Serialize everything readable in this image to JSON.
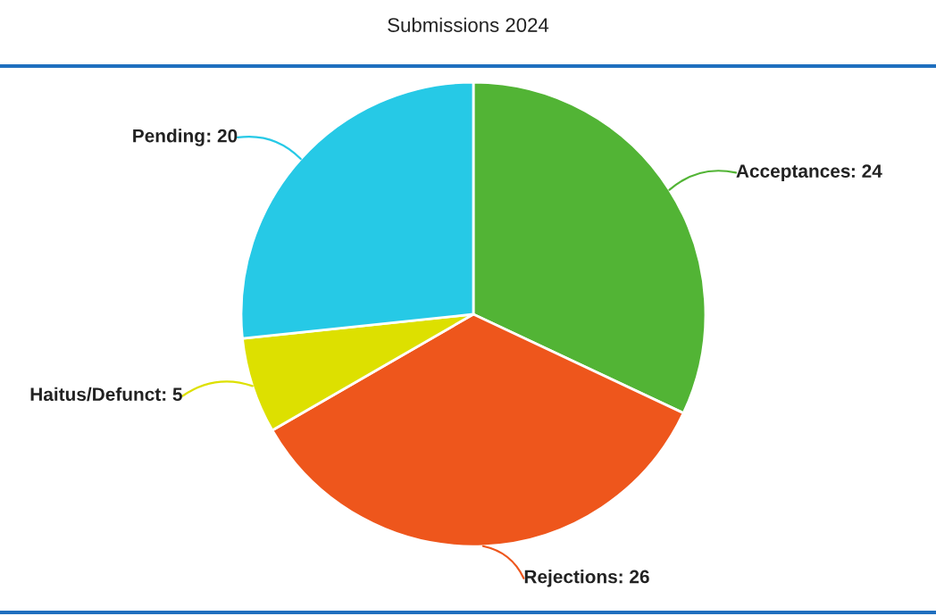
{
  "chart_data": {
    "type": "pie",
    "title": "Submissions 2024",
    "categories": [
      "Acceptances",
      "Rejections",
      "Haitus/Defunct",
      "Pending"
    ],
    "values": [
      24,
      26,
      5,
      20
    ],
    "colors": [
      "#52b435",
      "#ee561c",
      "#dde000",
      "#26c9e6"
    ],
    "value_labels": [
      ": 24",
      ": 26",
      ": 5",
      ": 20"
    ],
    "legend": false
  }
}
